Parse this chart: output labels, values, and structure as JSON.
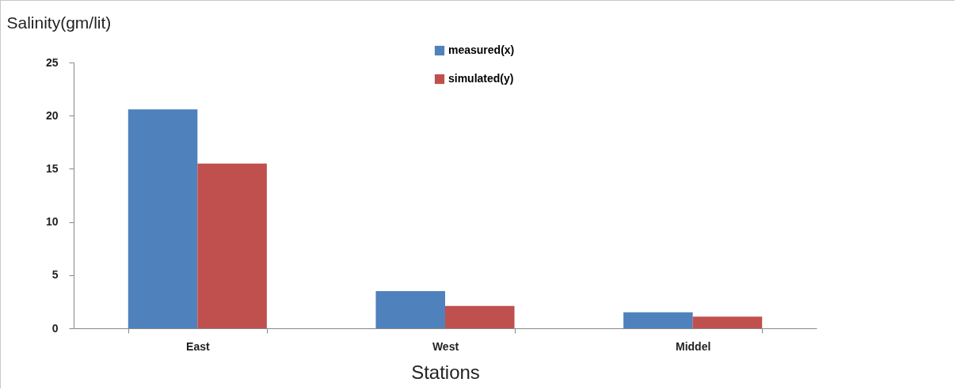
{
  "chart_data": {
    "type": "bar",
    "ylabel": "Salinity(gm/lit)",
    "xlabel": "Stations",
    "categories": [
      "East",
      "West",
      "Middel"
    ],
    "series": [
      {
        "name": "measured(x)",
        "color": "#4f81bd",
        "values": [
          20.6,
          3.5,
          1.5
        ]
      },
      {
        "name": "simulated(y)",
        "color": "#c0504d",
        "values": [
          15.5,
          2.1,
          1.1
        ]
      }
    ],
    "ylim": [
      0,
      25
    ],
    "yticks": [
      0,
      5,
      10,
      15,
      20,
      25
    ],
    "legend": "top"
  }
}
